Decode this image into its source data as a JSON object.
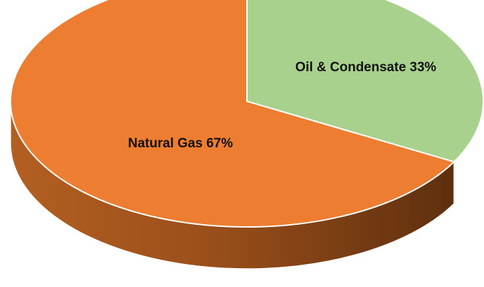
{
  "chart_data": {
    "type": "pie",
    "title": "",
    "slices": [
      {
        "label": "Natural Gas",
        "value": 67,
        "value_label": "67%",
        "color": "#ED7D31"
      },
      {
        "label": "Oil & Condensate",
        "value": 33,
        "value_label": "33%",
        "color": "#A9D18E"
      }
    ],
    "labels": {
      "natural_gas": "Natural Gas 67%",
      "oil_condensate": "Oil & Condensate 33%"
    },
    "legend": "none",
    "style": "3d"
  }
}
